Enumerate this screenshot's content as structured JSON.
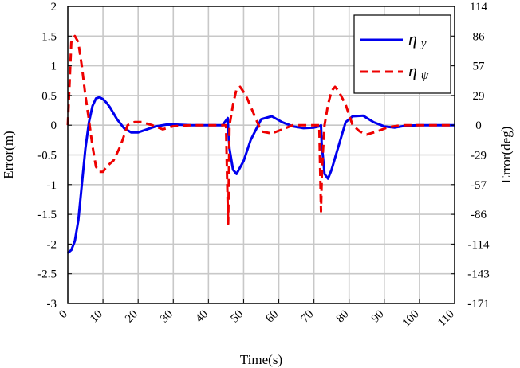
{
  "chart_data": {
    "type": "line",
    "xlabel": "Time(s)",
    "ylabel_left": "Error(m)",
    "ylabel_right": "Error(deg)",
    "xlim": [
      0,
      110
    ],
    "ylim_left": [
      -3,
      2
    ],
    "ylim_right": [
      -171.9,
      114.6
    ],
    "grid": true,
    "x_ticks": [
      "0",
      "10",
      "20",
      "30",
      "40",
      "50",
      "60",
      "70",
      "80",
      "90",
      "100",
      "110"
    ],
    "y_ticks_left": [
      "2",
      "1.5",
      "1",
      "0.5",
      "0",
      "-0.5",
      "-1",
      "-1.5",
      "-2",
      "-2.5",
      "-3"
    ],
    "y_ticks_right": [
      "114",
      "86",
      "57",
      "29",
      "0",
      "-29",
      "-57",
      "-86",
      "-114",
      "-143",
      "-171"
    ],
    "legend_position": "top-right",
    "series": [
      {
        "name": "η y",
        "legend_symbol": "η",
        "legend_subscript": "y",
        "axis": "left",
        "color": "#0000ee",
        "style": "solid",
        "x": [
          0,
          1,
          2,
          3,
          4,
          5,
          6,
          7,
          8,
          9,
          10,
          11,
          12,
          14,
          16,
          18,
          20,
          22,
          25,
          28,
          31,
          35,
          40,
          44,
          45.5,
          45.6,
          46,
          47,
          48,
          50,
          52,
          55,
          58,
          61,
          64,
          67,
          70,
          71.5,
          72,
          72.2,
          73,
          74,
          75,
          77,
          79,
          81,
          84,
          87,
          90,
          93,
          96,
          100,
          105,
          110
        ],
        "y": [
          -2.15,
          -2.1,
          -1.95,
          -1.6,
          -1.0,
          -0.4,
          0.05,
          0.32,
          0.45,
          0.47,
          0.44,
          0.38,
          0.3,
          0.1,
          -0.05,
          -0.12,
          -0.12,
          -0.08,
          -0.02,
          0.01,
          0.01,
          0.0,
          0.0,
          0.0,
          0.12,
          -0.05,
          -0.4,
          -0.75,
          -0.82,
          -0.6,
          -0.25,
          0.1,
          0.15,
          0.05,
          -0.02,
          -0.05,
          -0.04,
          -0.02,
          0.0,
          -0.3,
          -0.82,
          -0.9,
          -0.75,
          -0.35,
          0.05,
          0.15,
          0.16,
          0.05,
          -0.02,
          -0.04,
          -0.01,
          0.0,
          0.0,
          0.0
        ]
      },
      {
        "name": "η ψ",
        "legend_symbol": "η",
        "legend_subscript": "ψ",
        "axis": "right",
        "color": "#ee0000",
        "style": "dashed",
        "x": [
          0,
          0.5,
          1,
          2,
          3,
          4,
          5,
          6,
          7,
          8,
          9,
          10,
          11,
          13,
          15,
          17,
          19,
          21,
          24,
          27,
          30,
          35,
          40,
          44,
          45,
          45.3,
          45.6,
          46,
          47,
          48,
          49,
          50,
          51,
          53,
          55,
          58,
          61,
          64,
          67,
          70,
          71.5,
          71.8,
          72,
          72.3,
          73,
          74,
          75,
          76,
          77,
          79,
          81,
          83,
          85,
          88,
          91,
          95,
          100,
          105,
          110
        ],
        "y": [
          0,
          40,
          80,
          86,
          80,
          57,
          29,
          5,
          -20,
          -40,
          -45,
          -45,
          -40,
          -34,
          -20,
          0,
          3,
          3,
          0,
          -4,
          -1,
          0,
          0,
          0,
          0,
          -50,
          -95,
          0,
          20,
          35,
          37,
          32,
          26,
          10,
          -6,
          -8,
          -4,
          0,
          0,
          0,
          0,
          -50,
          -83,
          -40,
          0,
          20,
          33,
          37,
          33,
          20,
          0,
          -6,
          -9,
          -6,
          -2,
          0,
          0,
          0,
          0
        ]
      }
    ]
  }
}
